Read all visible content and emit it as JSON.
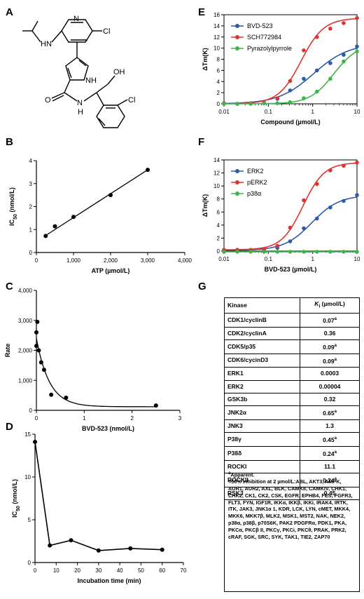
{
  "panels": {
    "A": "A",
    "B": "B",
    "C": "C",
    "D": "D",
    "E": "E",
    "F": "F",
    "G": "G"
  },
  "structure": {
    "atoms": {
      "n1": "N",
      "hn": "HN",
      "cl1": "Cl",
      "nh1": "NH",
      "cl2": "Cl",
      "oh": "OH",
      "o": "O",
      "n2": "N",
      "h": "H"
    }
  },
  "chart_data": [
    {
      "panel": "B",
      "type": "scatter",
      "xlabel": "ATP (µmol/L)",
      "ylabel": "IC50 (nmol/L)",
      "xlim": [
        0,
        4000
      ],
      "ylim": [
        0,
        4
      ],
      "xticks": [
        "0",
        "1,000",
        "2,000",
        "3,000",
        "4,000"
      ],
      "yticks": [
        "0",
        "1",
        "2",
        "3",
        "4"
      ],
      "x": [
        250,
        500,
        1000,
        2000,
        3000
      ],
      "y": [
        0.72,
        1.14,
        1.55,
        2.5,
        3.6
      ],
      "fit": [
        [
          250,
          0.74
        ],
        [
          3000,
          3.6
        ]
      ]
    },
    {
      "panel": "C",
      "type": "scatter",
      "xlabel": "BVD-523 (nmol/L)",
      "ylabel": "Rate",
      "xlim": [
        0,
        3
      ],
      "ylim": [
        0,
        4000
      ],
      "xticks": [
        "0",
        "1",
        "2",
        "3"
      ],
      "yticks": [
        "0",
        "1,000",
        "2,000",
        "3,000",
        "4,000"
      ],
      "x": [
        0,
        0,
        0.02,
        0.05,
        0.1,
        0.16,
        0.31,
        0.62,
        2.5
      ],
      "y": [
        2600,
        2150,
        2950,
        2000,
        1600,
        1350,
        520,
        420,
        160
      ]
    },
    {
      "panel": "D",
      "type": "line",
      "xlabel": "Incubation time (min)",
      "ylabel": "IC50 (nmol/L)",
      "xlim": [
        0,
        70
      ],
      "ylim": [
        0,
        15
      ],
      "xticks": [
        "0",
        "10",
        "20",
        "30",
        "40",
        "50",
        "60",
        "70"
      ],
      "yticks": [
        "0",
        "5",
        "10",
        "15"
      ],
      "x": [
        0,
        7,
        17,
        30,
        45,
        60
      ],
      "y": [
        14.1,
        2.0,
        2.6,
        1.4,
        1.65,
        1.5
      ]
    },
    {
      "panel": "E",
      "type": "line",
      "xlabel": "Compound (µmol/L)",
      "ylabel": "ΔTm(K)",
      "xscale": "log",
      "xlim": [
        0.01,
        10
      ],
      "ylim": [
        0,
        16
      ],
      "xticks": [
        "0.01",
        "0.1",
        "1",
        "10"
      ],
      "yticks": [
        "0",
        "2",
        "4",
        "6",
        "8",
        "10",
        "12",
        "14",
        "16"
      ],
      "x": [
        0.01,
        0.02,
        0.04,
        0.08,
        0.16,
        0.31,
        0.63,
        1.25,
        2.5,
        5,
        10
      ],
      "series": [
        {
          "name": "BVD-523",
          "color": "#2d5ba6",
          "values": [
            0.1,
            0,
            0.1,
            0.2,
            0.9,
            2.4,
            4.5,
            6.0,
            7.3,
            8.8,
            10.3
          ]
        },
        {
          "name": "SCH772984",
          "color": "#e0332f",
          "values": [
            0.1,
            0,
            0.1,
            0.2,
            1.0,
            4.1,
            9.6,
            12.0,
            13.5,
            14.5,
            15.4
          ]
        },
        {
          "name": "Pyrazolylpyrrole",
          "color": "#3db54a",
          "values": [
            0,
            0,
            0,
            0.1,
            0.1,
            0.3,
            1.0,
            2.2,
            4.5,
            7.6,
            9.4
          ]
        }
      ]
    },
    {
      "panel": "F",
      "type": "line",
      "xlabel": "BVD-523 (µmol/L)",
      "ylabel": "ΔTm(K)",
      "xscale": "log",
      "xlim": [
        0.01,
        10
      ],
      "ylim": [
        0,
        14
      ],
      "xticks": [
        "0.01",
        "0.1",
        "1",
        "10"
      ],
      "yticks": [
        "0",
        "2",
        "4",
        "6",
        "8",
        "10",
        "12",
        "14"
      ],
      "x": [
        0.01,
        0.02,
        0.04,
        0.08,
        0.16,
        0.31,
        0.63,
        1.25,
        2.5,
        5,
        10
      ],
      "series": [
        {
          "name": "ERK2",
          "color": "#2d5ba6",
          "values": [
            0.1,
            0.1,
            0.1,
            0.2,
            0.5,
            1.5,
            3.5,
            5.0,
            6.7,
            7.7,
            8.6
          ]
        },
        {
          "name": "pERK2",
          "color": "#e0332f",
          "values": [
            0.2,
            0.2,
            0.2,
            0.2,
            0.8,
            3.6,
            7.8,
            10.3,
            12.4,
            13.1,
            13.6
          ]
        },
        {
          "name": "p38α",
          "color": "#3db54a",
          "values": [
            -0.1,
            -0.1,
            -0.1,
            -0.1,
            -0.1,
            -0.1,
            -0.1,
            -0.1,
            -0.1,
            -0.1,
            -0.1
          ]
        }
      ]
    }
  ],
  "table": {
    "header": {
      "kinase": "Kinase",
      "ki": "K",
      "ki_sub": "i",
      "ki_unit": " (µmol/L)"
    },
    "rows": [
      {
        "kinase": "CDK1/cyclinB",
        "value": "0.07",
        "note": "a"
      },
      {
        "kinase": "CDK2/cyclinA",
        "value": "0.36",
        "note": ""
      },
      {
        "kinase": "CDK5/p35",
        "value": "0.09",
        "note": "a"
      },
      {
        "kinase": "CDK6/cycinD3",
        "value": "0.09",
        "note": "a"
      },
      {
        "kinase": "ERK1",
        "value": "0.0003",
        "note": ""
      },
      {
        "kinase": "ERK2",
        "value": "0.00004",
        "note": ""
      },
      {
        "kinase": "GSK3b",
        "value": "0.32",
        "note": ""
      },
      {
        "kinase": "JNK2α",
        "value": "0.65",
        "note": "a"
      },
      {
        "kinase": "JNK3",
        "value": "1.3",
        "note": ""
      },
      {
        "kinase": "P38γ",
        "value": "0.45",
        "note": "a"
      },
      {
        "kinase": "P38δ",
        "value": "0.24",
        "note": "a"
      },
      {
        "kinase": "ROCKI",
        "value": "11.1",
        "note": ""
      },
      {
        "kinase": "ROCKII",
        "value": "0.24",
        "note": "a"
      },
      {
        "kinase": "RSK3",
        "value": "0.45",
        "note": ""
      }
    ],
    "footnote_mark": "a",
    "footnote_text": "Apparent.",
    "inhibition_note": "<50% inhibition at 2 µmol/L:ABL, AKT3, AMPK, AUR1, AUR2, AXL, BLK, CAMKII, CAMKIV, CHK1, CHK2, CK1, CK2, CSK, EGFR, EPHB4, FES, FGFR3, FLT3, FYN, IGF1R, IKKα, IKKβ, IKKi, IRAK4, IRTK, ITK, JAK3, JNK1α 1, KDR, LCK, LYN, cMET, MKK4, MKK6, MKK7β, MLK2, MSK1, MST2, NAK, NEK2, p38α, p38β, p70S6K, PAK2 PDGFRα, PDK1, PKA, PKCα, PKCβ II, PKCγ, PKCi, PKCθ, PRAK, PRK2, cRAF, SGK, SRC, SYK, TAK1, TIE2, ZAP70"
  }
}
